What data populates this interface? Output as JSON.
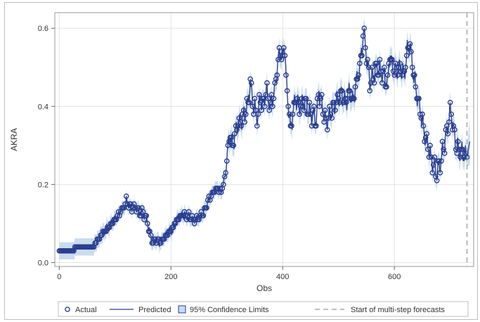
{
  "chart_data": {
    "type": "line",
    "title": "",
    "xlabel": "Obs",
    "ylabel": "AKRA",
    "xlim": [
      -8,
      742
    ],
    "ylim": [
      -0.01,
      0.64
    ],
    "xticks": [
      0,
      200,
      400,
      600
    ],
    "yticks": [
      0.0,
      0.2,
      0.4,
      0.6
    ],
    "grid": true,
    "legend_position": "bottom",
    "forecast_start": 730,
    "colors": {
      "marker": "#2a3d8f",
      "line": "#2a3d8f",
      "band": "#c9dcf0",
      "grid": "#e3e3e3",
      "refline": "#999999"
    },
    "anchors": [
      [
        0,
        0.03
      ],
      [
        25,
        0.03
      ],
      [
        30,
        0.04
      ],
      [
        60,
        0.04
      ],
      [
        70,
        0.06
      ],
      [
        80,
        0.08
      ],
      [
        95,
        0.1
      ],
      [
        105,
        0.12
      ],
      [
        115,
        0.14
      ],
      [
        120,
        0.16
      ],
      [
        125,
        0.14
      ],
      [
        135,
        0.14
      ],
      [
        145,
        0.13
      ],
      [
        155,
        0.12
      ],
      [
        160,
        0.09
      ],
      [
        163,
        0.07
      ],
      [
        167,
        0.05
      ],
      [
        172,
        0.06
      ],
      [
        180,
        0.05
      ],
      [
        190,
        0.07
      ],
      [
        200,
        0.08
      ],
      [
        210,
        0.11
      ],
      [
        220,
        0.12
      ],
      [
        230,
        0.12
      ],
      [
        240,
        0.11
      ],
      [
        255,
        0.12
      ],
      [
        265,
        0.15
      ],
      [
        275,
        0.18
      ],
      [
        283,
        0.19
      ],
      [
        290,
        0.18
      ],
      [
        297,
        0.22
      ],
      [
        300,
        0.26
      ],
      [
        305,
        0.33
      ],
      [
        310,
        0.3
      ],
      [
        318,
        0.35
      ],
      [
        325,
        0.36
      ],
      [
        332,
        0.38
      ],
      [
        338,
        0.41
      ],
      [
        342,
        0.46
      ],
      [
        348,
        0.4
      ],
      [
        355,
        0.37
      ],
      [
        360,
        0.42
      ],
      [
        365,
        0.4
      ],
      [
        370,
        0.44
      ],
      [
        378,
        0.4
      ],
      [
        385,
        0.43
      ],
      [
        390,
        0.5
      ],
      [
        395,
        0.54
      ],
      [
        400,
        0.52
      ],
      [
        403,
        0.57
      ],
      [
        407,
        0.45
      ],
      [
        410,
        0.41
      ],
      [
        414,
        0.34
      ],
      [
        418,
        0.38
      ],
      [
        423,
        0.42
      ],
      [
        430,
        0.4
      ],
      [
        440,
        0.41
      ],
      [
        450,
        0.38
      ],
      [
        460,
        0.37
      ],
      [
        465,
        0.44
      ],
      [
        470,
        0.4
      ],
      [
        478,
        0.36
      ],
      [
        485,
        0.38
      ],
      [
        495,
        0.41
      ],
      [
        505,
        0.43
      ],
      [
        512,
        0.41
      ],
      [
        520,
        0.44
      ],
      [
        525,
        0.41
      ],
      [
        532,
        0.46
      ],
      [
        538,
        0.5
      ],
      [
        542,
        0.55
      ],
      [
        545,
        0.59
      ],
      [
        548,
        0.56
      ],
      [
        552,
        0.5
      ],
      [
        557,
        0.46
      ],
      [
        562,
        0.48
      ],
      [
        570,
        0.5
      ],
      [
        580,
        0.48
      ],
      [
        588,
        0.46
      ],
      [
        592,
        0.54
      ],
      [
        596,
        0.5
      ],
      [
        603,
        0.49
      ],
      [
        610,
        0.5
      ],
      [
        617,
        0.48
      ],
      [
        623,
        0.54
      ],
      [
        628,
        0.56
      ],
      [
        633,
        0.49
      ],
      [
        636,
        0.47
      ],
      [
        640,
        0.43
      ],
      [
        645,
        0.4
      ],
      [
        650,
        0.36
      ],
      [
        655,
        0.32
      ],
      [
        660,
        0.3
      ],
      [
        665,
        0.27
      ],
      [
        670,
        0.25
      ],
      [
        675,
        0.23
      ],
      [
        680,
        0.24
      ],
      [
        685,
        0.27
      ],
      [
        690,
        0.31
      ],
      [
        695,
        0.34
      ],
      [
        700,
        0.39
      ],
      [
        705,
        0.35
      ],
      [
        710,
        0.3
      ],
      [
        715,
        0.29
      ],
      [
        722,
        0.28
      ],
      [
        730,
        0.27
      ],
      [
        735,
        0.31
      ]
    ],
    "series": [
      {
        "name": "Actual",
        "kind": "markers"
      },
      {
        "name": "Predicted",
        "kind": "line"
      },
      {
        "name": "95% Confidence Limits",
        "kind": "band"
      },
      {
        "name": "Start of multi-step forecasts",
        "kind": "reference-line"
      }
    ]
  }
}
